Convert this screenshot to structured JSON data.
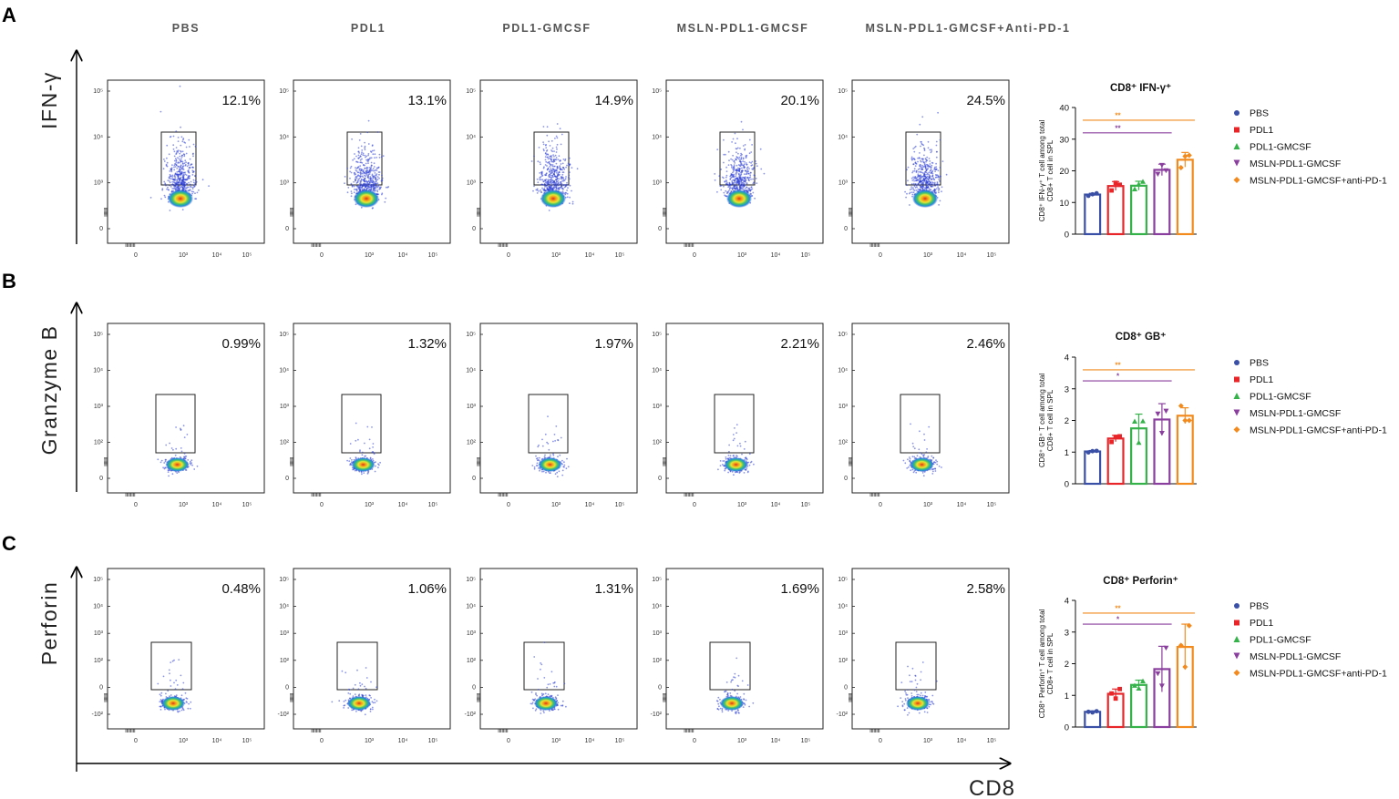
{
  "column_headers": [
    "PBS",
    "PDL1",
    "PDL1-GMCSF",
    "MSLN-PDL1-GMCSF",
    "MSLN-PDL1-GMCSF+Anti-PD-1"
  ],
  "x_axis_marker": "CD8",
  "colors": {
    "PBS": "#3a4fa6",
    "PDL1": "#e8262a",
    "PDL1-GMCSF": "#35b24a",
    "MSLN-PDL1-GMCSF": "#8a3f9e",
    "MSLN-PDL1-GMCSF+anti-PD-1": "#f28a1e"
  },
  "panels": [
    {
      "letter": "A",
      "marker": "IFN-γ",
      "percents": [
        "12.1%",
        "13.1%",
        "14.9%",
        "20.1%",
        "24.5%"
      ],
      "y_ticks": [
        "10⁵",
        "10⁴",
        "10³",
        "0"
      ],
      "x_ticks": [
        "0",
        "10³",
        "10⁴",
        "10⁵"
      ]
    },
    {
      "letter": "B",
      "marker": "Granzyme B",
      "percents": [
        "0.99%",
        "1.32%",
        "1.97%",
        "2.21%",
        "2.46%"
      ],
      "y_ticks": [
        "10⁵",
        "10⁴",
        "10³",
        "10²",
        "0"
      ],
      "x_ticks": [
        "0",
        "10³",
        "10⁴",
        "10⁵"
      ]
    },
    {
      "letter": "C",
      "marker": "Perforin",
      "percents": [
        "0.48%",
        "1.06%",
        "1.31%",
        "1.69%",
        "2.58%"
      ],
      "y_ticks": [
        "10⁵",
        "10⁴",
        "10³",
        "10²",
        "0",
        "-10²"
      ],
      "x_ticks": [
        "0",
        "10³",
        "10⁴",
        "10⁵"
      ]
    }
  ],
  "chart_data": [
    {
      "type": "bar",
      "title": "CD8⁺ IFN-γ⁺",
      "ylabel_line1": "CD8⁺ IFN-γ⁺ T cell among total",
      "ylabel_line2": "CD8+ T cell in SPL",
      "categories": [
        "PBS",
        "PDL1",
        "PDL1-GMCSF",
        "MSLN-PDL1-GMCSF",
        "MSLN-PDL1-GMCSF+anti-PD-1"
      ],
      "values": [
        12.5,
        15.2,
        15.3,
        20.3,
        23.5
      ],
      "errors": [
        0.4,
        1.4,
        1.4,
        1.8,
        2.3
      ],
      "points": [
        [
          12.1,
          12.6,
          12.9
        ],
        [
          13.8,
          16.2,
          15.6
        ],
        [
          14.2,
          15.8,
          16.6
        ],
        [
          19.0,
          21.8,
          20.1
        ],
        [
          21.0,
          24.6,
          24.9
        ]
      ],
      "ylim": [
        0,
        40
      ],
      "yticks": [
        0,
        10,
        20,
        30,
        40
      ],
      "significance": [
        {
          "label": "**",
          "from": 0,
          "to": 4,
          "level": 36,
          "color": "#f28a1e"
        },
        {
          "label": "**",
          "from": 0,
          "to": 3,
          "level": 32,
          "color": "#8a3f9e"
        }
      ]
    },
    {
      "type": "bar",
      "title": "CD8⁺ GB⁺",
      "ylabel_line1": "CD8⁺ GB⁺ T cell among total",
      "ylabel_line2": "CD8+ T cell in SPL",
      "categories": [
        "PBS",
        "PDL1",
        "PDL1-GMCSF",
        "MSLN-PDL1-GMCSF",
        "MSLN-PDL1-GMCSF+anti-PD-1"
      ],
      "values": [
        1.02,
        1.43,
        1.75,
        2.03,
        2.15
      ],
      "errors": [
        0.03,
        0.1,
        0.45,
        0.5,
        0.25
      ],
      "points": [
        [
          0.99,
          1.03,
          1.04
        ],
        [
          1.32,
          1.48,
          1.5
        ],
        [
          1.97,
          1.3,
          1.98
        ],
        [
          2.21,
          1.6,
          2.3
        ],
        [
          2.46,
          2.0,
          2.0
        ]
      ],
      "ylim": [
        0,
        4
      ],
      "yticks": [
        0,
        1,
        2,
        3,
        4
      ],
      "significance": [
        {
          "label": "**",
          "from": 0,
          "to": 4,
          "level": 3.6,
          "color": "#f28a1e"
        },
        {
          "label": "*",
          "from": 0,
          "to": 3,
          "level": 3.25,
          "color": "#8a3f9e"
        }
      ]
    },
    {
      "type": "bar",
      "title": "CD8⁺ Perforin⁺",
      "ylabel_line1": "CD8⁺ Perforin⁺ T cell among total",
      "ylabel_line2": "CD8+ T cell in SPL",
      "categories": [
        "PBS",
        "PDL1",
        "PDL1-GMCSF",
        "MSLN-PDL1-GMCSF",
        "MSLN-PDL1-GMCSF+anti-PD-1"
      ],
      "values": [
        0.48,
        1.05,
        1.33,
        1.83,
        2.53
      ],
      "errors": [
        0.03,
        0.15,
        0.15,
        0.72,
        0.72
      ],
      "points": [
        [
          0.48,
          0.46,
          0.5
        ],
        [
          1.06,
          0.9,
          1.2
        ],
        [
          1.31,
          1.22,
          1.45
        ],
        [
          1.69,
          1.3,
          2.5
        ],
        [
          2.58,
          1.9,
          3.2
        ]
      ],
      "ylim": [
        0,
        4
      ],
      "yticks": [
        0,
        1,
        2,
        3,
        4
      ],
      "significance": [
        {
          "label": "**",
          "from": 0,
          "to": 4,
          "level": 3.6,
          "color": "#f28a1e"
        },
        {
          "label": "*",
          "from": 0,
          "to": 3,
          "level": 3.25,
          "color": "#8a3f9e"
        }
      ]
    }
  ]
}
